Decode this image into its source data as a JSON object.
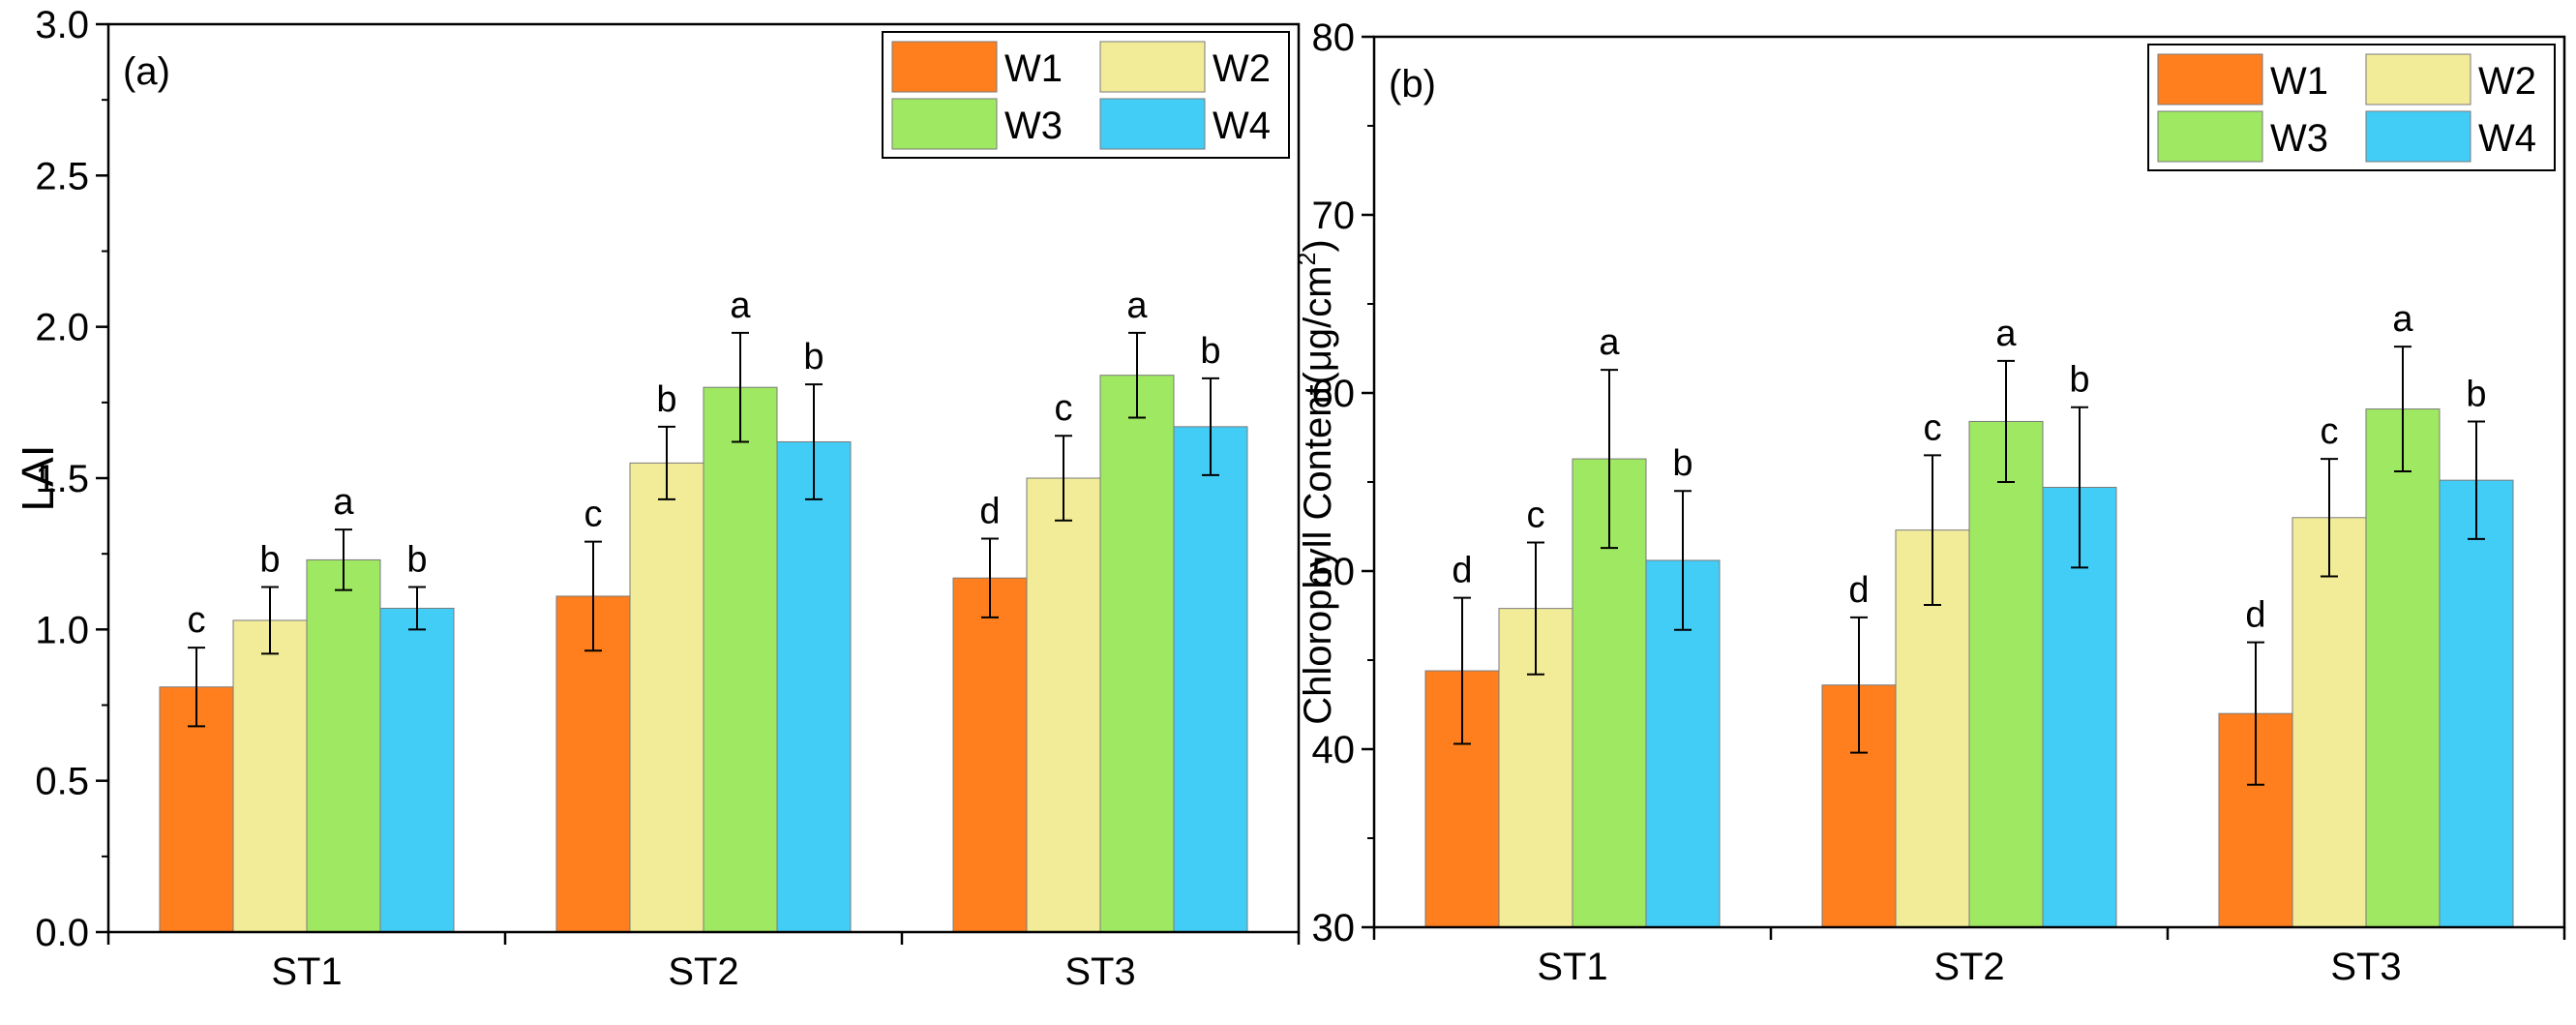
{
  "colors": {
    "W1": "#ff7f1e",
    "W2": "#f2ec98",
    "W3": "#9fe861",
    "W4": "#42cdf7",
    "axis": "#000000"
  },
  "chart_data": [
    {
      "type": "bar",
      "panel_label": "(a)",
      "title": "",
      "xlabel": "",
      "ylabel": "LAI",
      "ylim": [
        0.0,
        3.0
      ],
      "yticks": [
        "0.0",
        "0.5",
        "1.0",
        "1.5",
        "2.0",
        "2.5",
        "3.0"
      ],
      "grid": false,
      "legend_position": "top-right",
      "categories": [
        "ST1",
        "ST2",
        "ST3"
      ],
      "series": [
        {
          "name": "W1",
          "values": [
            0.81,
            1.11,
            1.17
          ],
          "errors": [
            0.13,
            0.18,
            0.13
          ],
          "letters": [
            "c",
            "c",
            "d"
          ]
        },
        {
          "name": "W2",
          "values": [
            1.03,
            1.55,
            1.5
          ],
          "errors": [
            0.11,
            0.12,
            0.14
          ],
          "letters": [
            "b",
            "b",
            "c"
          ]
        },
        {
          "name": "W3",
          "values": [
            1.23,
            1.8,
            1.84
          ],
          "errors": [
            0.1,
            0.18,
            0.14
          ],
          "letters": [
            "a",
            "a",
            "a"
          ]
        },
        {
          "name": "W4",
          "values": [
            1.07,
            1.62,
            1.67
          ],
          "errors": [
            0.07,
            0.19,
            0.16
          ],
          "letters": [
            "b",
            "b",
            "b"
          ]
        }
      ]
    },
    {
      "type": "bar",
      "panel_label": "(b)",
      "title": "",
      "xlabel": "",
      "ylabel": "Chlorophyll Content(μg/cm",
      "ylabel_superscript": "2",
      "ylabel_suffix": ")",
      "ylim": [
        30,
        80
      ],
      "yticks": [
        "30",
        "40",
        "50",
        "60",
        "70",
        "80"
      ],
      "grid": false,
      "legend_position": "top-right",
      "categories": [
        "ST1",
        "ST2",
        "ST3"
      ],
      "series": [
        {
          "name": "W1",
          "values": [
            44.4,
            43.6,
            42.0
          ],
          "errors": [
            4.1,
            3.8,
            4.0
          ],
          "letters": [
            "d",
            "d",
            "d"
          ]
        },
        {
          "name": "W2",
          "values": [
            47.9,
            52.3,
            53.0
          ],
          "errors": [
            3.7,
            4.2,
            3.3
          ],
          "letters": [
            "c",
            "c",
            "c"
          ]
        },
        {
          "name": "W3",
          "values": [
            56.3,
            58.4,
            59.1
          ],
          "errors": [
            5.0,
            3.4,
            3.5
          ],
          "letters": [
            "a",
            "a",
            "a"
          ]
        },
        {
          "name": "W4",
          "values": [
            50.6,
            54.7,
            55.1
          ],
          "errors": [
            3.9,
            4.5,
            3.3
          ],
          "letters": [
            "b",
            "b",
            "b"
          ]
        }
      ]
    }
  ]
}
